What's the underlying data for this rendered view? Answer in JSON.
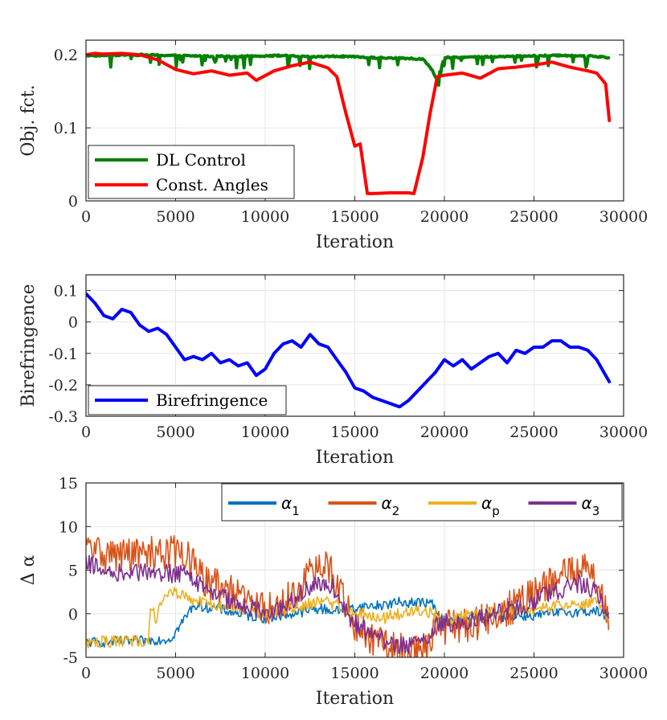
{
  "chart_data": [
    {
      "type": "line",
      "xlabel": "Iteration",
      "ylabel": "Obj. fct.",
      "xlim": [
        0,
        30000
      ],
      "ylim": [
        0,
        0.22
      ],
      "x_ticks": [
        0,
        5000,
        10000,
        15000,
        20000,
        25000,
        30000
      ],
      "x_tick_labels": [
        "0",
        "5000",
        "10000",
        "15000",
        "20000",
        "25000",
        "30000"
      ],
      "y_ticks": [
        0,
        0.1,
        0.2
      ],
      "y_tick_labels": [
        "0",
        "0.1",
        "0.2"
      ],
      "grid": true,
      "legend": "bottom-left",
      "series": [
        {
          "name": "DL Control",
          "color": "#008000",
          "noise": 0.004,
          "x": [
            0,
            1000,
            3000,
            5000,
            7000,
            9000,
            11000,
            12500,
            14000,
            16000,
            18000,
            18800,
            19300,
            19600,
            20000,
            22000,
            24000,
            26000,
            28000,
            29200
          ],
          "y": [
            0.199,
            0.199,
            0.2,
            0.199,
            0.198,
            0.198,
            0.199,
            0.197,
            0.198,
            0.196,
            0.195,
            0.194,
            0.18,
            0.165,
            0.196,
            0.197,
            0.198,
            0.199,
            0.199,
            0.196
          ]
        },
        {
          "name": "Const. Angles",
          "color": "#ff0000",
          "noise": 0,
          "x": [
            0,
            500,
            1000,
            2000,
            3000,
            4000,
            5000,
            6000,
            7000,
            8000,
            9000,
            9500,
            10500,
            11500,
            12500,
            13500,
            14000,
            14500,
            15000,
            15300,
            15700,
            16000,
            17000,
            18000,
            18300,
            18800,
            19200,
            19600,
            20000,
            21000,
            22000,
            23000,
            24000,
            25000,
            26000,
            27000,
            28000,
            28500,
            29000,
            29200
          ],
          "y": [
            0.2,
            0.202,
            0.201,
            0.202,
            0.2,
            0.193,
            0.18,
            0.174,
            0.178,
            0.172,
            0.175,
            0.165,
            0.178,
            0.185,
            0.19,
            0.182,
            0.17,
            0.12,
            0.075,
            0.078,
            0.01,
            0.01,
            0.011,
            0.011,
            0.01,
            0.06,
            0.12,
            0.17,
            0.172,
            0.175,
            0.168,
            0.181,
            0.183,
            0.186,
            0.19,
            0.183,
            0.178,
            0.175,
            0.16,
            0.11
          ]
        }
      ]
    },
    {
      "type": "line",
      "xlabel": "Iteration",
      "ylabel": "Birefringence",
      "xlim": [
        0,
        30000
      ],
      "ylim": [
        -0.3,
        0.15
      ],
      "x_ticks": [
        0,
        5000,
        10000,
        15000,
        20000,
        25000,
        30000
      ],
      "x_tick_labels": [
        "0",
        "5000",
        "10000",
        "15000",
        "20000",
        "25000",
        "30000"
      ],
      "y_ticks": [
        -0.3,
        -0.2,
        -0.1,
        0,
        0.1
      ],
      "y_tick_labels": [
        "-0.3",
        "-0.2",
        "-0.1",
        "0",
        "0.1"
      ],
      "grid": true,
      "legend": "bottom-left",
      "series": [
        {
          "name": "Birefringence",
          "color": "#0000ff",
          "noise": 0,
          "x": [
            0,
            500,
            1000,
            1500,
            2000,
            2500,
            3000,
            3500,
            4000,
            4500,
            5000,
            5500,
            6000,
            6500,
            7000,
            7500,
            8000,
            8500,
            9000,
            9500,
            10000,
            10500,
            11000,
            11500,
            12000,
            12500,
            13000,
            13500,
            14000,
            14500,
            15000,
            15500,
            16000,
            16500,
            17000,
            17500,
            18000,
            18500,
            19000,
            19500,
            20000,
            20500,
            21000,
            21500,
            22000,
            22500,
            23000,
            23500,
            24000,
            24500,
            25000,
            25500,
            26000,
            26500,
            27000,
            27500,
            28000,
            28500,
            29000,
            29200
          ],
          "y": [
            0.09,
            0.06,
            0.02,
            0.01,
            0.04,
            0.03,
            -0.01,
            -0.03,
            -0.02,
            -0.04,
            -0.08,
            -0.12,
            -0.11,
            -0.12,
            -0.1,
            -0.13,
            -0.12,
            -0.14,
            -0.13,
            -0.17,
            -0.15,
            -0.1,
            -0.07,
            -0.06,
            -0.08,
            -0.04,
            -0.07,
            -0.08,
            -0.12,
            -0.16,
            -0.21,
            -0.22,
            -0.24,
            -0.25,
            -0.26,
            -0.27,
            -0.25,
            -0.22,
            -0.19,
            -0.16,
            -0.12,
            -0.14,
            -0.12,
            -0.15,
            -0.13,
            -0.11,
            -0.1,
            -0.13,
            -0.09,
            -0.1,
            -0.08,
            -0.08,
            -0.06,
            -0.06,
            -0.08,
            -0.08,
            -0.09,
            -0.12,
            -0.17,
            -0.19
          ]
        }
      ]
    },
    {
      "type": "line",
      "xlabel": "Iteration",
      "ylabel": "Δ α",
      "xlim": [
        0,
        30000
      ],
      "ylim": [
        -5,
        15
      ],
      "x_ticks": [
        0,
        5000,
        10000,
        15000,
        20000,
        25000,
        30000
      ],
      "x_tick_labels": [
        "0",
        "5000",
        "10000",
        "15000",
        "20000",
        "25000",
        "30000"
      ],
      "y_ticks": [
        -5,
        0,
        5,
        10,
        15
      ],
      "y_tick_labels": [
        "-5",
        "0",
        "5",
        "10",
        "15"
      ],
      "grid": true,
      "legend": "top-right",
      "series": [
        {
          "name": "α1",
          "name_base": "α",
          "name_sub": "1",
          "color": "#0072bd",
          "noise": 0.6,
          "x": [
            0,
            3500,
            3600,
            4700,
            5200,
            6000,
            7500,
            9000,
            10000,
            11500,
            13000,
            14000,
            15500,
            16500,
            17500,
            18500,
            19300,
            19700,
            20200,
            21000,
            23000,
            25000,
            27000,
            28500,
            29200
          ],
          "y": [
            -3.3,
            -3.1,
            -3.0,
            -2.9,
            -1.5,
            1.0,
            0.5,
            -0.2,
            -0.5,
            0.0,
            0.6,
            0.3,
            0.8,
            1.0,
            1.3,
            1.3,
            1.2,
            -0.5,
            -1.0,
            -0.5,
            -0.3,
            -0.2,
            0.2,
            0.3,
            -0.5
          ]
        },
        {
          "name": "α2",
          "name_base": "α",
          "name_sub": "2",
          "color": "#d95319",
          "noise": 2.0,
          "x": [
            0,
            700,
            1000,
            3500,
            4000,
            5500,
            6500,
            8000,
            9500,
            10500,
            11500,
            12500,
            13500,
            14300,
            15000,
            16000,
            17000,
            18000,
            19000,
            19500,
            20000,
            20500,
            22000,
            24000,
            26000,
            27500,
            28500,
            29200
          ],
          "y": [
            7.5,
            7.2,
            6.8,
            6.8,
            7.2,
            7.0,
            4.0,
            2.5,
            1.0,
            0.5,
            2.0,
            4.5,
            5.5,
            2.0,
            -1.5,
            -3.0,
            -4.0,
            -4.2,
            -4.0,
            -1.5,
            -1.5,
            -1.5,
            -1.0,
            1.0,
            3.5,
            5.5,
            4.0,
            -0.5
          ]
        },
        {
          "name": "αp",
          "name_base": "α",
          "name_sub": "p",
          "color": "#edb120",
          "noise": 0.7,
          "x": [
            0,
            3500,
            3600,
            3900,
            4200,
            4600,
            5000,
            6000,
            7500,
            9000,
            10000,
            11500,
            13000,
            14000,
            15500,
            16500,
            17500,
            18500,
            19300,
            19700,
            20200,
            21000,
            23000,
            25000,
            27000,
            28500,
            29200
          ],
          "y": [
            -3.3,
            -3.1,
            1.0,
            -0.5,
            1.5,
            2.5,
            2.5,
            1.5,
            0.8,
            0.5,
            -0.2,
            0.5,
            1.5,
            1.0,
            0.0,
            -0.5,
            0.0,
            0.5,
            0.2,
            -0.5,
            -1.0,
            -0.2,
            0.2,
            0.5,
            1.2,
            1.2,
            -0.3
          ]
        },
        {
          "name": "α3",
          "name_base": "α",
          "name_sub": "3",
          "color": "#7e2f8e",
          "noise": 1.1,
          "x": [
            0,
            700,
            1000,
            3500,
            4000,
            5500,
            6500,
            8000,
            9500,
            10500,
            11500,
            12500,
            13500,
            14300,
            15000,
            16000,
            17000,
            18000,
            19000,
            19500,
            20000,
            20500,
            22000,
            24000,
            26000,
            27500,
            28500,
            29200
          ],
          "y": [
            5.8,
            5.2,
            4.7,
            4.7,
            4.8,
            4.5,
            3.0,
            1.5,
            0.5,
            0.3,
            1.5,
            3.0,
            3.8,
            1.0,
            -1.0,
            -2.5,
            -3.5,
            -3.5,
            -3.3,
            -1.0,
            -1.0,
            -1.0,
            -0.5,
            0.5,
            2.5,
            3.5,
            2.5,
            -0.3
          ]
        }
      ]
    }
  ]
}
